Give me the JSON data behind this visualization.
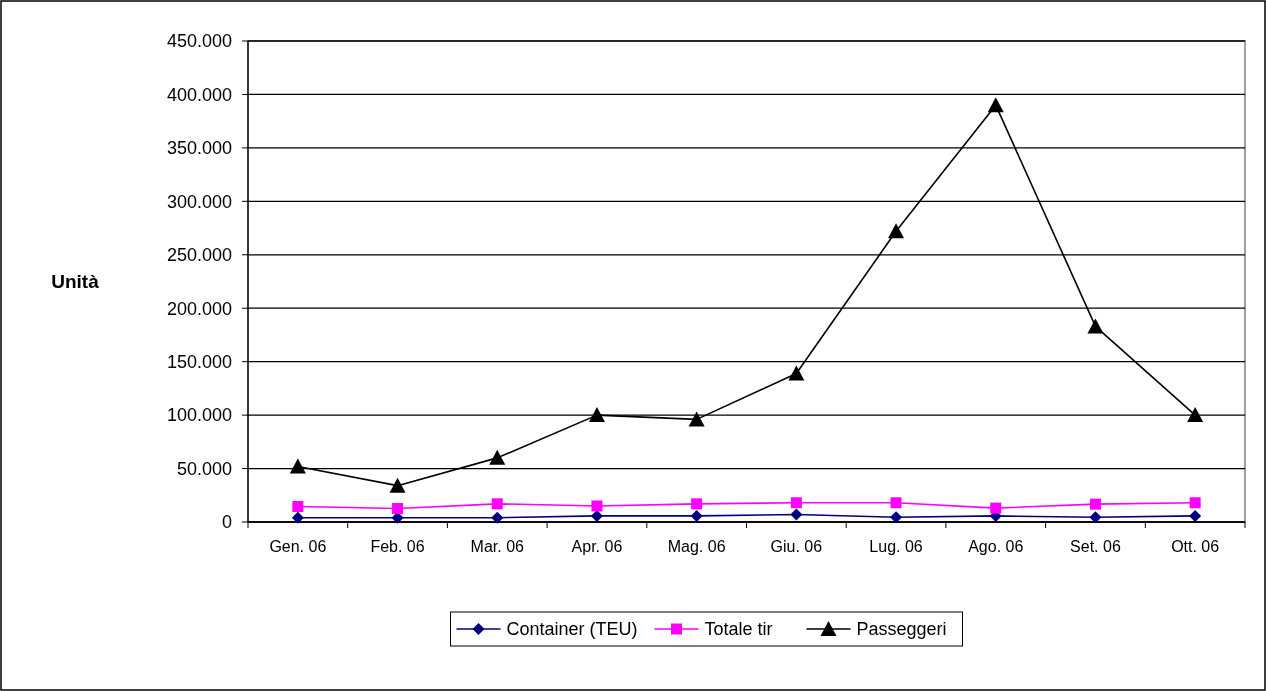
{
  "chart_data": {
    "type": "line",
    "ylabel": "Unità",
    "categories": [
      "Gen. 06",
      "Feb. 06",
      "Mar. 06",
      "Apr. 06",
      "Mag. 06",
      "Giu. 06",
      "Lug. 06",
      "Ago. 06",
      "Set. 06",
      "Ott. 06"
    ],
    "series": [
      {
        "name": "Container (TEU)",
        "color": "#000080",
        "marker": "diamond",
        "values": [
          4000,
          4000,
          4000,
          5700,
          5700,
          7000,
          4400,
          5700,
          4400,
          5700
        ]
      },
      {
        "name": "Totale tir",
        "color": "#ff00ff",
        "marker": "square",
        "values": [
          14500,
          12600,
          17000,
          15000,
          17000,
          18000,
          18000,
          13000,
          16700,
          18000
        ]
      },
      {
        "name": "Passeggeri",
        "color": "#000000",
        "marker": "triangle",
        "values": [
          52000,
          34000,
          60000,
          100000,
          96000,
          139000,
          272000,
          390000,
          183000,
          100000
        ]
      }
    ],
    "ylim": [
      0,
      450000
    ],
    "yticks": [
      {
        "value": 0,
        "label": "0"
      },
      {
        "value": 50000,
        "label": "50.000"
      },
      {
        "value": 100000,
        "label": "100.000"
      },
      {
        "value": 150000,
        "label": "150.000"
      },
      {
        "value": 200000,
        "label": "200.000"
      },
      {
        "value": 250000,
        "label": "250.000"
      },
      {
        "value": 300000,
        "label": "300.000"
      },
      {
        "value": 350000,
        "label": "350.000"
      },
      {
        "value": 400000,
        "label": "400.000"
      },
      {
        "value": 450000,
        "label": "450.000"
      }
    ],
    "grid": "y",
    "legend": "bottom",
    "line_style": "solid"
  }
}
